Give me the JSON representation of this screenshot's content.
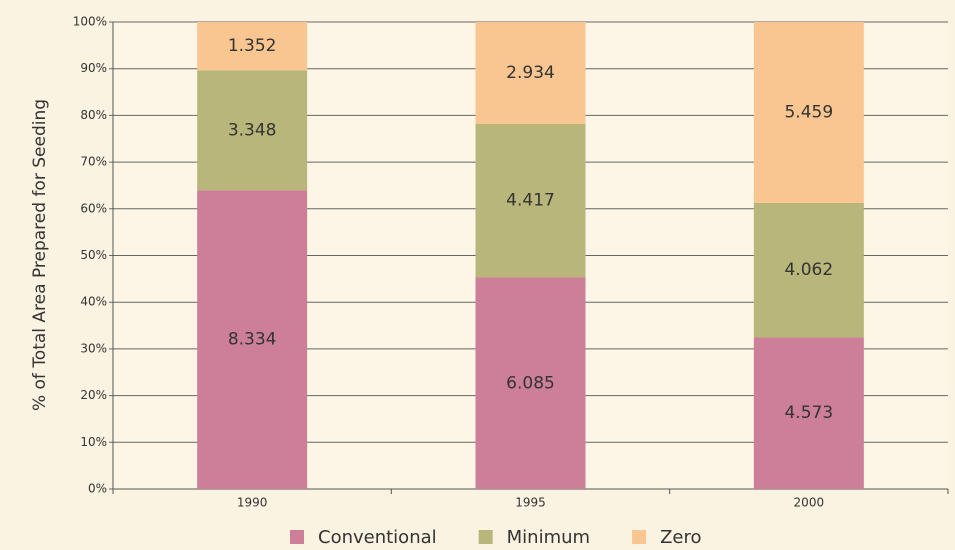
{
  "chart_data": {
    "type": "bar",
    "stacking": "percent",
    "ylabel": "% of Total Area Prepared for Seeding",
    "categories": [
      "1990",
      "1995",
      "2000"
    ],
    "series": [
      {
        "name": "Conventional",
        "color": "#cd7f9a",
        "values": [
          8.334,
          6.085,
          4.573
        ]
      },
      {
        "name": "Minimum",
        "color": "#b8b67a",
        "values": [
          3.348,
          4.417,
          4.062
        ]
      },
      {
        "name": "Zero",
        "color": "#f9c590",
        "values": [
          1.352,
          2.934,
          5.459
        ]
      }
    ],
    "ylim": [
      0,
      100
    ],
    "yticks": [
      {
        "value": 0,
        "label": "0%"
      },
      {
        "value": 10,
        "label": "10%"
      },
      {
        "value": 20,
        "label": "20%"
      },
      {
        "value": 30,
        "label": "30%"
      },
      {
        "value": 40,
        "label": "40%"
      },
      {
        "value": 50,
        "label": "50%"
      },
      {
        "value": 60,
        "label": "60%"
      },
      {
        "value": 70,
        "label": "70%"
      },
      {
        "value": 80,
        "label": "80%"
      },
      {
        "value": 90,
        "label": "90%"
      },
      {
        "value": 100,
        "label": "100%"
      }
    ],
    "grid": true,
    "legend": "bottom"
  }
}
